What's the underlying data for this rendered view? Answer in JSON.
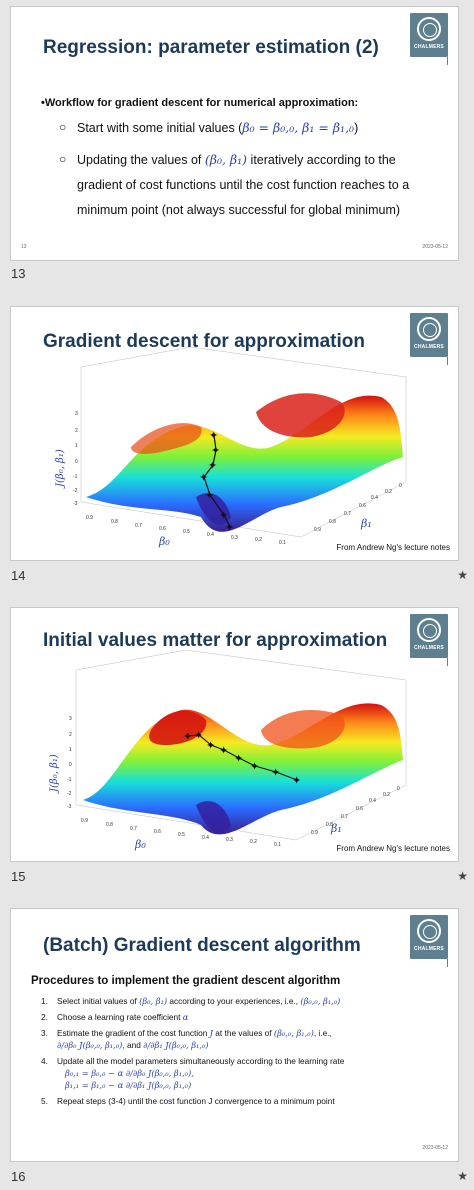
{
  "slides": [
    {
      "number": "13",
      "title": "Regression: parameter estimation (2)",
      "logo_text": "CHALMERS",
      "footer_page": "13",
      "footer_date": "2023-05-12",
      "heading": "Workflow for gradient descent for numerical approximation:",
      "items": [
        {
          "text": "Start with some initial values (",
          "math": "β₀ = β₀,₀, β₁ = β₁,₀",
          "tail": ")"
        },
        {
          "pre": "Updating the values of ",
          "math": "(β₀, β₁)",
          "text": " iteratively according to the gradient of cost functions until the cost function reaches to a minimum point (not always successful for global minimum)"
        }
      ]
    },
    {
      "number": "14",
      "title": "Gradient descent for approximation",
      "logo_text": "CHALMERS",
      "note": "From Andrew Ng's lecture notes",
      "axis_z": "J(β₀, β₁)",
      "axis_x": "β₀",
      "axis_y": "β₁",
      "star": "★"
    },
    {
      "number": "15",
      "title": "Initial values matter for approximation",
      "logo_text": "CHALMERS",
      "note": "From Andrew Ng's lecture notes",
      "axis_z": "J(β₀, β₁)",
      "axis_x": "β₀",
      "axis_y": "β₁",
      "star": "★"
    },
    {
      "number": "16",
      "title": "(Batch) Gradient descent algorithm",
      "logo_text": "CHALMERS",
      "footer_date": "2023-05-12",
      "heading": "Procedures to implement the gradient descent algorithm",
      "star": "★",
      "steps": {
        "s1": "Select initial values of ",
        "s1m": "(β₀, β₁)",
        "s1b": " according to your experiences, i.e., ",
        "s1m2": "(β₀,₀, β₁,₀)",
        "s2": "Choose a learning rate coefficient ",
        "s2m": "α",
        "s3": "Estimate the gradient of the cost function ",
        "s3m": "J",
        "s3b": " at the values of ",
        "s3m2": "(β₀,₀, β₁,₀)",
        "s3c": ", i.e.,",
        "s3d": "∂/∂β₀ J(β₀,₀, β₁,₀)",
        "s3e": ", and ",
        "s3f": "∂/∂β₁ J(β₀,₀, β₁,₀)",
        "s4": "Update all the model parameters simultaneously according to the learning rate",
        "s4a": "β₀,₁ = β₀,₀ − α ∂/∂β₀ J(β₀,₀, β₁,₀),",
        "s4b": "β₁,₁ = β₁,₀ − α ∂/∂β₁ J(β₀,₀, β₁,₀)",
        "s5": "Repeat steps (3-4) until the cost function J convergence to a minimum point"
      }
    }
  ]
}
